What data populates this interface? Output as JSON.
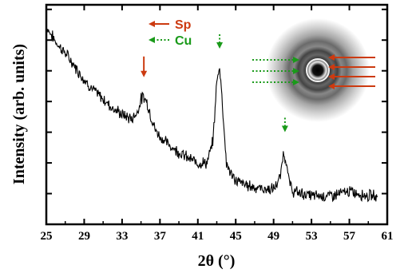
{
  "chart_data": {
    "type": "line",
    "xlabel": "2θ (°)",
    "ylabel": "Intensity (arb. units)",
    "xlim": [
      25,
      61
    ],
    "ylim": [
      0,
      100
    ],
    "x_ticks": [
      "25",
      "29",
      "33",
      "37",
      "41",
      "45",
      "49",
      "53",
      "57",
      "61"
    ],
    "y_tick_count": 7,
    "grid": false,
    "series": [
      {
        "x": [
          25,
          26,
          27,
          28,
          29,
          30,
          31,
          32,
          33,
          34,
          34.6,
          35.0,
          35.3,
          35.6,
          36.0,
          36.5,
          37,
          38,
          39,
          40,
          41,
          42,
          42.6,
          43.0,
          43.3,
          43.6,
          44.0,
          44.6,
          45,
          46,
          47,
          48,
          49,
          49.7,
          50.0,
          50.3,
          50.6,
          51,
          52,
          53,
          54,
          55,
          56,
          57,
          58,
          59,
          60
        ],
        "y": [
          90,
          83,
          78,
          72,
          66,
          61,
          57,
          53,
          50,
          48,
          51,
          57,
          58,
          56,
          50,
          43,
          40,
          36,
          33,
          30,
          28,
          28,
          38,
          65,
          72,
          55,
          28,
          22,
          20,
          18,
          17,
          16,
          16,
          21,
          32,
          30,
          20,
          15,
          14,
          13,
          13,
          13,
          14,
          15,
          14,
          13,
          13
        ]
      }
    ],
    "legend": [
      {
        "label": "Sp",
        "color": "#cc3a10",
        "style": "solid"
      },
      {
        "label": "Cu",
        "color": "#1a9a1a",
        "style": "dotted"
      }
    ],
    "annotations": [
      {
        "type": "arrow",
        "series": "Sp",
        "x": 35.3,
        "y": 67
      },
      {
        "type": "arrow",
        "series": "Cu",
        "x": 43.3,
        "y": 80
      },
      {
        "type": "arrow",
        "series": "Cu",
        "x": 50.2,
        "y": 42
      }
    ],
    "inset": {
      "type": "diffraction-ring-pattern",
      "left_arrows": "Cu",
      "right_arrows": "Sp"
    }
  }
}
